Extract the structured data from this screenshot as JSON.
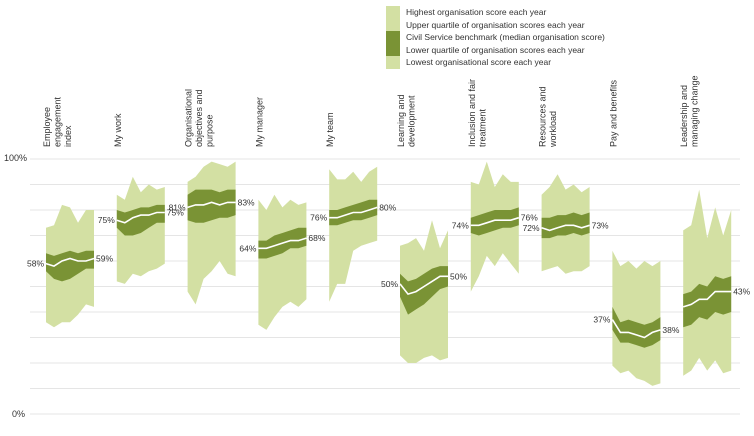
{
  "colors": {
    "range": "#d3e0a3",
    "iqr": "#7a9335",
    "median": "#ffffff",
    "grid": "#cccccc"
  },
  "legend": [
    {
      "label": "Highest organisation score each year",
      "color": "#d3e0a3"
    },
    {
      "label": "Upper quartile of organisation scores each year",
      "color": "#d3e0a3"
    },
    {
      "label": "Civil Service benchmark (median organisation score)",
      "color": "#7a9335"
    },
    {
      "label": "Lower quartile of organisation scores each year",
      "color": "#7a9335"
    },
    {
      "label": "Lowest organisational score each year",
      "color": "#d3e0a3"
    }
  ],
  "chart_data": {
    "type": "area",
    "ylim": [
      0,
      100
    ],
    "ytick_labels": [
      "0%",
      "100%"
    ],
    "grid": true,
    "legend_position": "top",
    "categories": [
      {
        "label": "Employee engagement index",
        "label_lines": [
          "Employee",
          "engagement",
          "index"
        ],
        "start_label": "58%",
        "end_label": "59%",
        "max": [
          73,
          74,
          82,
          81,
          75,
          80,
          80
        ],
        "uq": [
          63,
          62,
          63,
          64,
          63,
          64,
          64
        ],
        "median": [
          59,
          58,
          60,
          61,
          60,
          60,
          61
        ],
        "lq": [
          56,
          53,
          52,
          53,
          55,
          57,
          57
        ],
        "min": [
          36,
          34,
          36,
          36,
          39,
          43,
          42
        ]
      },
      {
        "label": "My work",
        "label_lines": [
          "My work"
        ],
        "start_label": "75%",
        "end_label": "75%",
        "max": [
          86,
          84,
          93,
          87,
          90,
          88,
          89
        ],
        "uq": [
          80,
          79,
          80,
          81,
          81,
          82,
          82
        ],
        "median": [
          76,
          75,
          77,
          78,
          78,
          79,
          79
        ],
        "lq": [
          73,
          70,
          70,
          71,
          73,
          75,
          75
        ],
        "min": [
          52,
          51,
          55,
          54,
          56,
          57,
          59
        ]
      },
      {
        "label": "Organisational objectives and purpose",
        "label_lines": [
          "Organisational",
          "objectives and",
          "purpose"
        ],
        "start_label": "81%",
        "end_label": "83%",
        "max": [
          91,
          93,
          97,
          99,
          98,
          97,
          99
        ],
        "uq": [
          86,
          88,
          88,
          88,
          87,
          88,
          88
        ],
        "median": [
          81,
          82,
          82,
          83,
          82,
          83,
          83
        ],
        "lq": [
          76,
          75,
          75,
          76,
          77,
          77,
          78
        ],
        "min": [
          48,
          43,
          53,
          56,
          60,
          55,
          54
        ]
      },
      {
        "label": "My manager",
        "label_lines": [
          "My manager"
        ],
        "start_label": "64%",
        "end_label": "68%",
        "max": [
          84,
          80,
          86,
          81,
          84,
          82,
          83
        ],
        "uq": [
          68,
          68,
          70,
          71,
          72,
          73,
          73
        ],
        "median": [
          65,
          65,
          66,
          67,
          68,
          68,
          69
        ],
        "lq": [
          61,
          61,
          62,
          63,
          65,
          65,
          66
        ],
        "min": [
          35,
          33,
          38,
          42,
          44,
          42,
          45
        ]
      },
      {
        "label": "My team",
        "label_lines": [
          "My team"
        ],
        "start_label": "76%",
        "end_label": "80%",
        "max": [
          96,
          92,
          92,
          95,
          91,
          95,
          97
        ],
        "uq": [
          80,
          80,
          81,
          82,
          83,
          84,
          84
        ],
        "median": [
          77,
          77,
          78,
          79,
          79,
          80,
          81
        ],
        "lq": [
          74,
          74,
          75,
          76,
          76,
          77,
          78
        ],
        "min": [
          44,
          51,
          51,
          64,
          66,
          67,
          68
        ]
      },
      {
        "label": "Learning and development",
        "label_lines": [
          "Learning and",
          "development"
        ],
        "start_label": "50%",
        "end_label": "50%",
        "max": [
          66,
          67,
          69,
          64,
          76,
          65,
          72
        ],
        "uq": [
          55,
          52,
          53,
          55,
          57,
          58,
          58
        ],
        "median": [
          51,
          47,
          48,
          50,
          52,
          54,
          54
        ],
        "lq": [
          46,
          39,
          41,
          43,
          46,
          49,
          50
        ],
        "min": [
          23,
          20,
          20,
          22,
          23,
          21,
          22
        ]
      },
      {
        "label": "Inclusion and fair treatment",
        "label_lines": [
          "Inclusion and fair",
          "treatment"
        ],
        "start_label": "74%",
        "end_label": "76%",
        "max": [
          91,
          90,
          99,
          89,
          94,
          91,
          91
        ],
        "uq": [
          77,
          78,
          79,
          80,
          80,
          80,
          81
        ],
        "median": [
          74,
          74,
          75,
          76,
          76,
          76,
          77
        ],
        "lq": [
          71,
          70,
          71,
          72,
          73,
          73,
          74
        ],
        "min": [
          48,
          54,
          62,
          58,
          63,
          59,
          55
        ]
      },
      {
        "label": "Resources and workload",
        "label_lines": [
          "Resources and",
          "workload"
        ],
        "start_label": "72%",
        "end_label": "73%",
        "max": [
          86,
          89,
          94,
          88,
          90,
          87,
          89
        ],
        "uq": [
          77,
          77,
          78,
          78,
          79,
          78,
          79
        ],
        "median": [
          73,
          72,
          73,
          74,
          74,
          73,
          74
        ],
        "lq": [
          69,
          69,
          70,
          70,
          71,
          70,
          71
        ],
        "min": [
          56,
          57,
          58,
          55,
          56,
          56,
          58
        ]
      },
      {
        "label": "Pay and benefits",
        "label_lines": [
          "Pay and benefits"
        ],
        "start_label": "37%",
        "end_label": "38%",
        "max": [
          64,
          58,
          60,
          57,
          60,
          58,
          60
        ],
        "uq": [
          42,
          36,
          37,
          36,
          35,
          36,
          38
        ],
        "median": [
          37,
          32,
          32,
          31,
          30,
          32,
          33
        ],
        "lq": [
          33,
          28,
          28,
          27,
          26,
          27,
          29
        ],
        "min": [
          19,
          16,
          17,
          14,
          13,
          11,
          12
        ]
      },
      {
        "label": "Leadership and managing change",
        "label_lines": [
          "Leadership and",
          "managing change"
        ],
        "start_label": "",
        "end_label": "43%",
        "max": [
          72,
          74,
          88,
          69,
          81,
          70,
          80
        ],
        "uq": [
          47,
          48,
          51,
          50,
          54,
          53,
          54
        ],
        "median": [
          42,
          43,
          45,
          45,
          48,
          48,
          48
        ],
        "lq": [
          34,
          35,
          38,
          37,
          40,
          39,
          40
        ],
        "min": [
          15,
          17,
          22,
          17,
          21,
          16,
          17
        ]
      }
    ]
  }
}
